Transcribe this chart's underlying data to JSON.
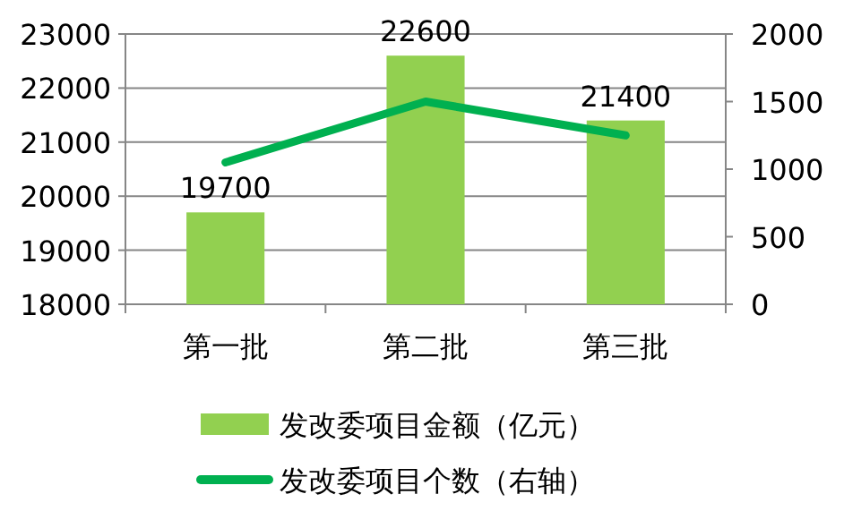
{
  "chart_data": {
    "type": "bar",
    "categories": [
      "第一批",
      "第二批",
      "第三批"
    ],
    "series": [
      {
        "name": "发改委项目金额（亿元）",
        "color": "#92d050",
        "values": [
          19700,
          22600,
          21400
        ],
        "value_labels": [
          "19700",
          "22600",
          "21400"
        ]
      },
      {
        "name": "发改委项目个数（右轴）",
        "type": "line",
        "axis": "y2",
        "color": "#00b050",
        "values": [
          1050,
          1500,
          1250
        ]
      }
    ],
    "ylim": [
      18000,
      23000
    ],
    "yticks": [
      18000,
      19000,
      20000,
      21000,
      22000,
      23000
    ],
    "y2lim": [
      0,
      2000
    ],
    "y2ticks": [
      0,
      500,
      1000,
      1500,
      2000
    ],
    "grid": "y",
    "legend": "bottom",
    "marker": "none",
    "line_style": "solid"
  }
}
